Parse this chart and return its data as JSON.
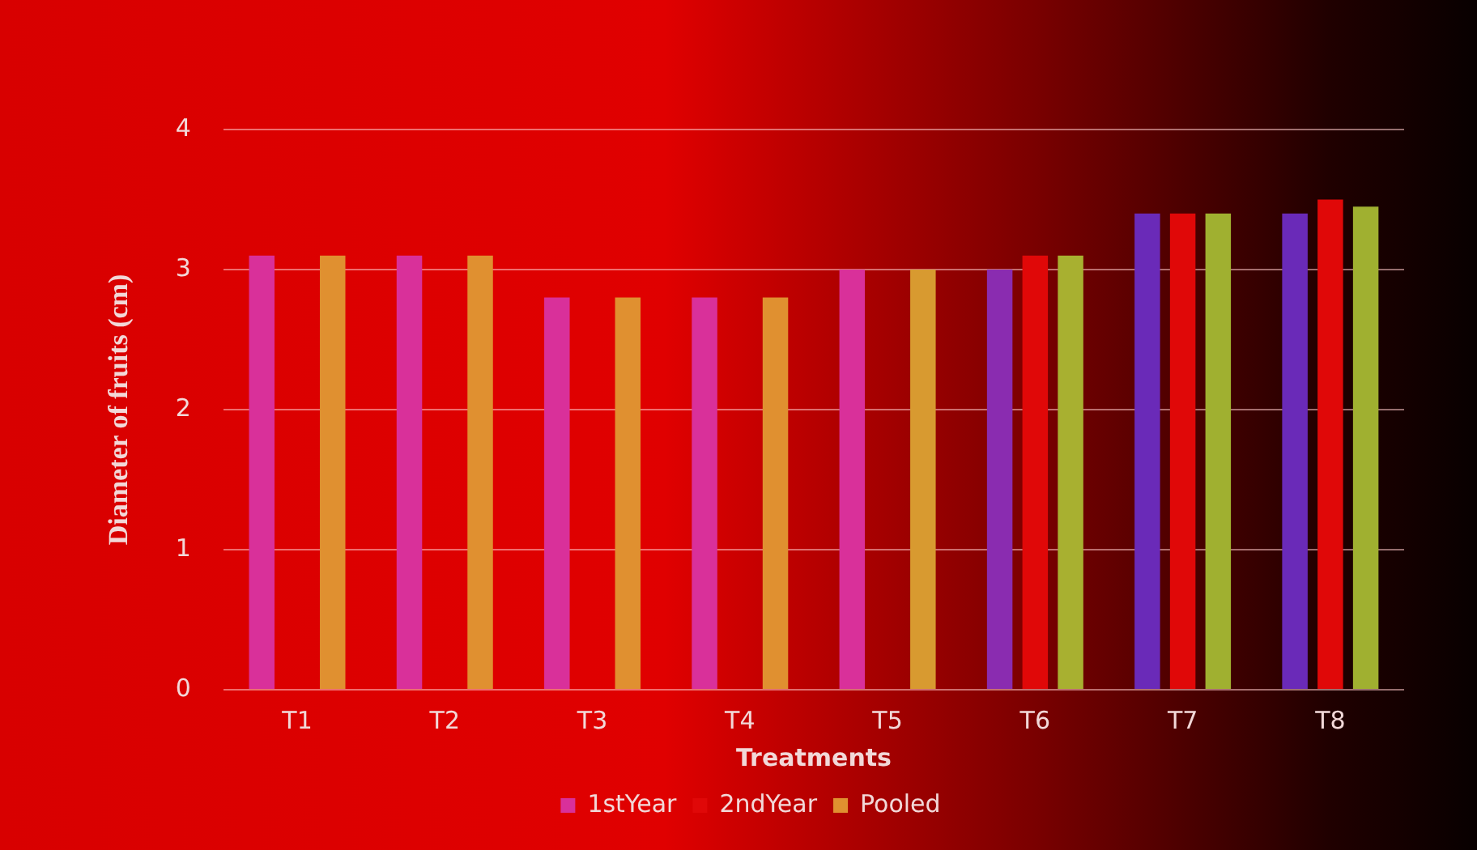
{
  "chart_data": {
    "type": "bar",
    "xlabel": "Treatments",
    "ylabel": "Diameter of fruits (cm)",
    "categories": [
      "T1",
      "T2",
      "T3",
      "T4",
      "T5",
      "T6",
      "T7",
      "T8"
    ],
    "series": [
      {
        "name": "1stYear",
        "color": "#d9309a",
        "colors": [
          "#d9309a",
          "#d9309a",
          "#d9309a",
          "#d9309a",
          "#d9309a",
          "#8a2cb0",
          "#6a2ab8",
          "#6a2ab8"
        ],
        "values": [
          3.1,
          3.1,
          2.8,
          2.8,
          3.0,
          3.0,
          3.4,
          3.4
        ]
      },
      {
        "name": "2ndYear",
        "color": "#e00808",
        "values": [
          null,
          null,
          null,
          null,
          null,
          3.1,
          3.4,
          3.5
        ]
      },
      {
        "name": "Pooled",
        "color": "#e09030",
        "colors": [
          "#e09030",
          "#e09030",
          "#e09030",
          "#e09030",
          "#d89a30",
          "#a8b030",
          "#a0b030",
          "#a0b030"
        ],
        "values": [
          3.1,
          3.1,
          2.8,
          2.8,
          3.0,
          3.1,
          3.4,
          3.45
        ]
      }
    ],
    "ylim": [
      0,
      4
    ],
    "yticks": [
      0,
      1,
      2,
      3,
      4
    ],
    "grid": "y",
    "legend": "bottom"
  }
}
